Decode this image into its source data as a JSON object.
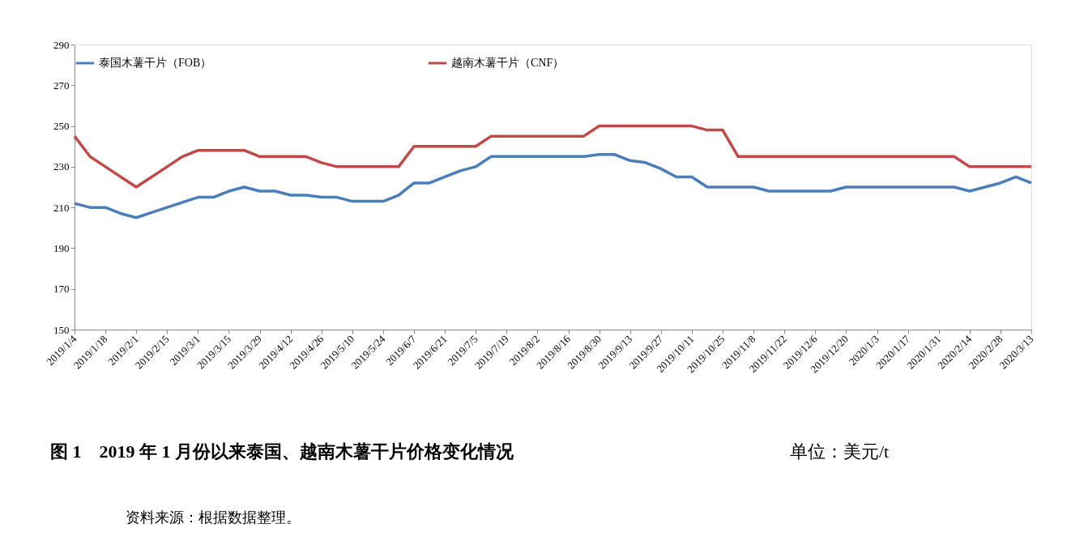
{
  "chart_data": {
    "type": "line",
    "title": "图 1　2019 年 1 月份以来泰国、越南木薯干片价格变化情况",
    "annotations": [
      "单位：美元/t",
      "资料来源：根据数据整理。"
    ],
    "categories": [
      "2019/1/4",
      null,
      "2019/1/18",
      null,
      "2019/2/1",
      null,
      "2019/2/15",
      null,
      "2019/3/1",
      null,
      "2019/3/15",
      null,
      "2019/3/29",
      null,
      "2019/4/12",
      null,
      "2019/4/26",
      null,
      "2019/5/10",
      null,
      "2019/5/24",
      null,
      "2019/6/7",
      null,
      "2019/6/21",
      null,
      "2019/7/5",
      null,
      "2019/7/19",
      null,
      "2019/8/2",
      null,
      "2019/8/16",
      null,
      "2019/8/30",
      null,
      "2019/9/13",
      null,
      "2019/9/27",
      null,
      "2019/10/11",
      null,
      "2019/10/25",
      null,
      "2019/11/8",
      null,
      "2019/11/22",
      null,
      "2019/12/6",
      null,
      "2019/12/20",
      null,
      "2020/1/3",
      null,
      "2020/1/17",
      null,
      "2020/1/31",
      null,
      "2020/2/14",
      null,
      "2020/2/28",
      null,
      "2020/3/13"
    ],
    "series": [
      {
        "name": "泰国木薯干片（FOB）",
        "color": "#4a7ebb",
        "values": [
          212,
          210,
          210,
          207,
          205,
          207.5,
          210,
          212.5,
          215,
          215,
          218,
          220,
          218,
          218,
          216,
          216,
          215,
          215,
          213,
          213,
          213,
          216,
          222,
          222,
          225,
          228,
          230,
          235,
          235,
          235,
          235,
          235,
          235,
          235,
          236,
          236,
          233,
          232,
          229,
          225,
          225,
          220,
          220,
          220,
          220,
          218,
          218,
          218,
          218,
          218,
          220,
          220,
          220,
          220,
          220,
          220,
          220,
          220,
          218,
          220,
          222,
          225,
          222
        ]
      },
      {
        "name": "越南木薯干片（CNF）",
        "color": "#be4b48",
        "values": [
          245,
          235,
          230,
          225,
          220,
          225,
          230,
          235,
          238,
          238,
          238,
          238,
          235,
          235,
          235,
          235,
          232,
          230,
          230,
          230,
          230,
          230,
          240,
          240,
          240,
          240,
          240,
          245,
          245,
          245,
          245,
          245,
          245,
          245,
          250,
          250,
          250,
          250,
          250,
          250,
          250,
          248,
          248,
          235,
          235,
          235,
          235,
          235,
          235,
          235,
          235,
          235,
          235,
          235,
          235,
          235,
          235,
          235,
          230,
          230,
          230,
          230,
          230
        ]
      }
    ],
    "ylim": [
      150,
      290
    ],
    "yticks": [
      150,
      170,
      190,
      210,
      230,
      250,
      270,
      290
    ],
    "grid": false,
    "legend": "top",
    "marker": "none",
    "line_style": "solid"
  }
}
